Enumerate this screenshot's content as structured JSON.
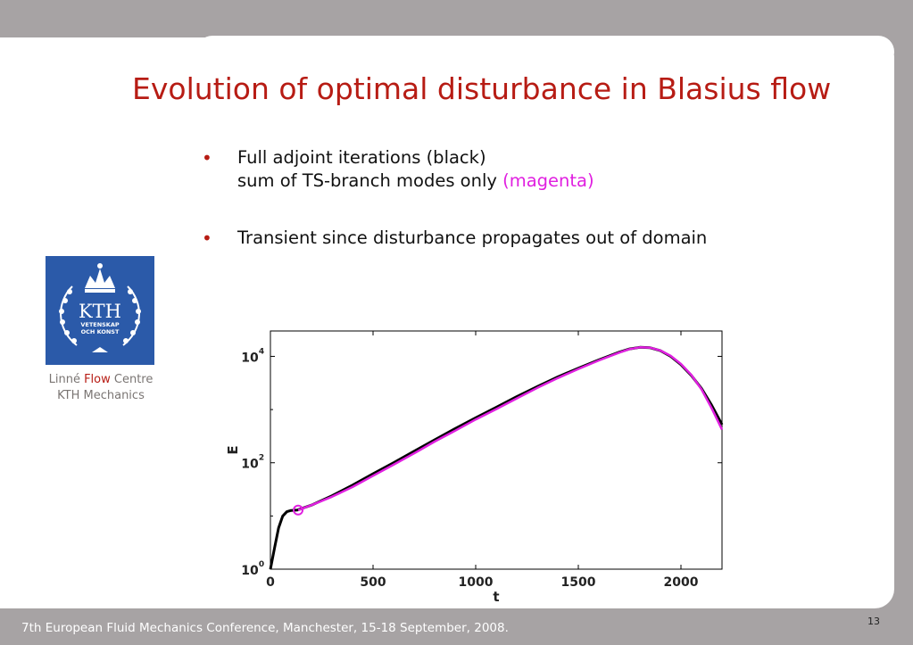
{
  "slide": {
    "title": "Evolution of optimal disturbance in Blasius flow",
    "bullets": [
      {
        "line1": "Full adjoint iterations (black)",
        "line2_prefix": "sum of TS-branch modes only ",
        "line2_highlight": "(magenta)"
      },
      {
        "line1": "Transient since disturbance propagates out of domain"
      }
    ],
    "bullet_glyph": "•",
    "logo": {
      "text": "KTH",
      "line1": "VETENSKAP",
      "line2": "OCH KONST"
    },
    "caption": {
      "part1": "Linné ",
      "part2": "Flow",
      "part3": " Centre",
      "line2": "KTH Mechanics"
    },
    "footer": "7th European Fluid Mechanics Conference, Manchester, 15-18 September, 2008.",
    "page_number": "13",
    "colors": {
      "title": "#b71c14",
      "highlight": "#e020e0",
      "background": "#a7a3a4",
      "logo": "#2b5aa9"
    }
  },
  "chart_data": {
    "type": "line",
    "xlabel": "t",
    "ylabel": "E",
    "xlim": [
      0,
      2200
    ],
    "ylim": [
      1,
      30000
    ],
    "yscale": "log",
    "xticks": [
      0,
      500,
      1000,
      1500,
      2000
    ],
    "xtick_labels": [
      "0",
      "500",
      "1000",
      "1500",
      "2000"
    ],
    "yticks": [
      1,
      100,
      10000
    ],
    "ytick_labels": [
      {
        "base": "10",
        "exp": "0"
      },
      {
        "base": "10",
        "exp": "2"
      },
      {
        "base": "10",
        "exp": "4"
      }
    ],
    "series": [
      {
        "color": "#000000",
        "points": [
          [
            0,
            1
          ],
          [
            20,
            2.5
          ],
          [
            40,
            6
          ],
          [
            60,
            10
          ],
          [
            80,
            12
          ],
          [
            100,
            12.7
          ],
          [
            130,
            12.9
          ],
          [
            200,
            16
          ],
          [
            300,
            24
          ],
          [
            400,
            38
          ],
          [
            500,
            62
          ],
          [
            600,
            100
          ],
          [
            700,
            165
          ],
          [
            800,
            270
          ],
          [
            900,
            440
          ],
          [
            1000,
            700
          ],
          [
            1100,
            1100
          ],
          [
            1200,
            1750
          ],
          [
            1300,
            2700
          ],
          [
            1400,
            4100
          ],
          [
            1500,
            6000
          ],
          [
            1600,
            8600
          ],
          [
            1700,
            12000
          ],
          [
            1750,
            13800
          ],
          [
            1800,
            14800
          ],
          [
            1850,
            14500
          ],
          [
            1900,
            12800
          ],
          [
            1950,
            10000
          ],
          [
            2000,
            7000
          ],
          [
            2050,
            4400
          ],
          [
            2100,
            2500
          ],
          [
            2150,
            1200
          ],
          [
            2200,
            520
          ]
        ]
      },
      {
        "color": "#e020e0",
        "points": [
          [
            135,
            12.9
          ],
          [
            200,
            16
          ],
          [
            300,
            23
          ],
          [
            400,
            35
          ],
          [
            500,
            57
          ],
          [
            600,
            92
          ],
          [
            700,
            150
          ],
          [
            800,
            250
          ],
          [
            900,
            400
          ],
          [
            1000,
            650
          ],
          [
            1100,
            1020
          ],
          [
            1200,
            1620
          ],
          [
            1300,
            2550
          ],
          [
            1400,
            3900
          ],
          [
            1500,
            5800
          ],
          [
            1600,
            8400
          ],
          [
            1700,
            11800
          ],
          [
            1750,
            13700
          ],
          [
            1800,
            14800
          ],
          [
            1850,
            14600
          ],
          [
            1900,
            12900
          ],
          [
            1950,
            10200
          ],
          [
            2000,
            7200
          ],
          [
            2050,
            4500
          ],
          [
            2100,
            2400
          ],
          [
            2150,
            1050
          ],
          [
            2200,
            420
          ]
        ]
      }
    ],
    "markers": [
      {
        "x": 135,
        "y": 12.9,
        "color": "#e020e0",
        "shape": "open-circle"
      }
    ],
    "grid": false
  }
}
